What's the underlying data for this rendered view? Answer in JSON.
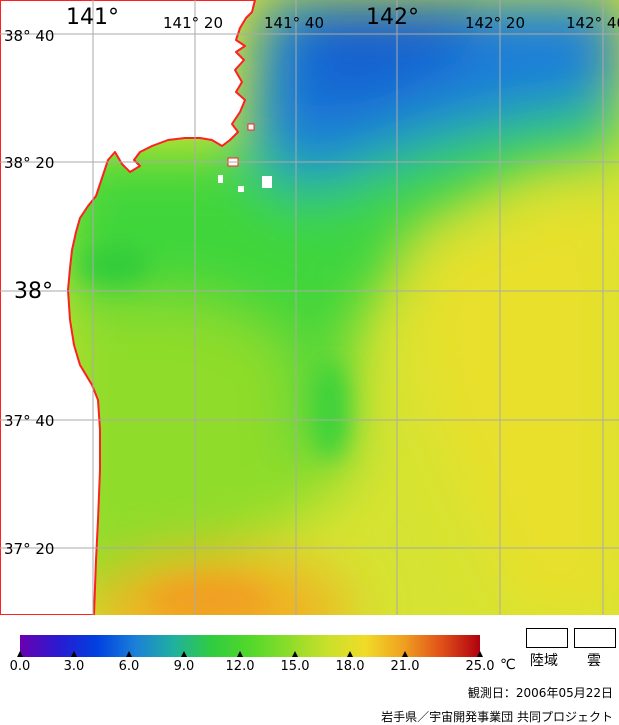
{
  "map": {
    "lon_labels": [
      {
        "text": "141°",
        "size": "big"
      },
      {
        "text": "141° 20",
        "size": "small"
      },
      {
        "text": "141° 40",
        "size": "small"
      },
      {
        "text": "142°",
        "size": "big"
      },
      {
        "text": "142° 20",
        "size": "small"
      },
      {
        "text": "142° 40",
        "size": "small"
      }
    ],
    "lat_labels": [
      {
        "text": "38° 40",
        "size": "small"
      },
      {
        "text": "38° 20",
        "size": "small"
      },
      {
        "text": "38°",
        "size": "big"
      },
      {
        "text": "37° 40",
        "size": "small"
      },
      {
        "text": "37° 20",
        "size": "small"
      }
    ],
    "coastline_color": "#ff2020",
    "land_color": "#ffffff",
    "grid_color": "#aaaaaa"
  },
  "colorbar": {
    "ticks": [
      "0.0",
      "3.0",
      "6.0",
      "9.0",
      "12.0",
      "15.0",
      "18.0",
      "21.0",
      "25.0"
    ],
    "unit": "℃",
    "stops": [
      "#6a00b0",
      "#2a1ad0",
      "#0040e0",
      "#1b7fd8",
      "#20b0a0",
      "#30cc40",
      "#52d82a",
      "#8cdc2a",
      "#c8e02a",
      "#f0dc28",
      "#f0a020",
      "#e05018",
      "#b00010"
    ]
  },
  "legend": {
    "land_label": "陸域",
    "cloud_label": "雲"
  },
  "observation_date": "観測日：2006年05月22日",
  "credit": "岩手県／宇宙開発事業団 共同プロジェクト"
}
